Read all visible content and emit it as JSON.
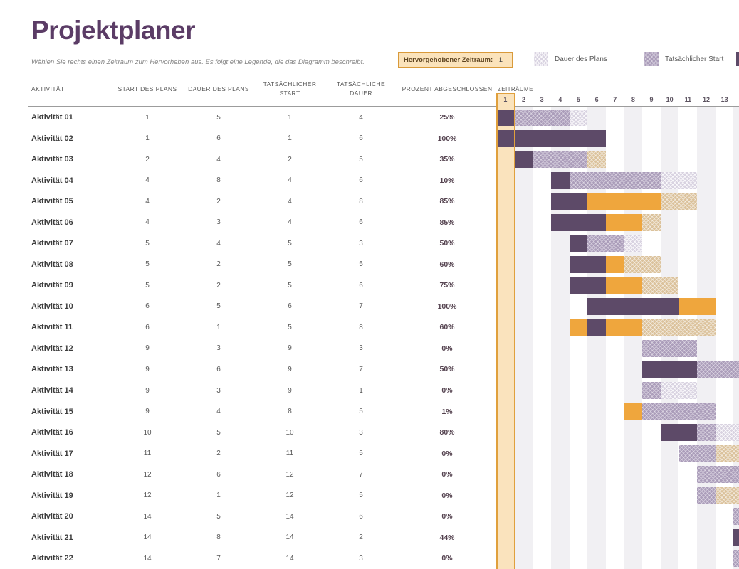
{
  "title": "Projektplaner",
  "subtitle": "Wählen Sie rechts einen Zeitraum zum Hervorheben aus.  Es folgt eine Legende, die das Diagramm beschreibt.",
  "highlight_control": {
    "label": "Hervorgehobener Zeitraum:",
    "value": 1
  },
  "legend": [
    {
      "label": "Dauer des Plans",
      "swatch": "plan-hatch"
    },
    {
      "label": "Tatsächlicher Start",
      "swatch": "actual-hatch"
    }
  ],
  "table": {
    "headers": [
      "AKTIVITÄT",
      "START DES PLANS",
      "DAUER DES PLANS",
      "TATSÄCHLICHER START",
      "TATSÄCHLICHE DAUER",
      "PROZENT ABGESCHLOSSEN"
    ],
    "rows": [
      {
        "activity": "Aktivität 01",
        "values": [
          1,
          5,
          1,
          4
        ],
        "percent": "25%"
      },
      {
        "activity": "Aktivität 02",
        "values": [
          1,
          6,
          1,
          6
        ],
        "percent": "100%"
      },
      {
        "activity": "Aktivität 03",
        "values": [
          2,
          4,
          2,
          5
        ],
        "percent": "35%"
      },
      {
        "activity": "Aktivität 04",
        "values": [
          4,
          8,
          4,
          6
        ],
        "percent": "10%"
      },
      {
        "activity": "Aktivität 05",
        "values": [
          4,
          2,
          4,
          8
        ],
        "percent": "85%"
      },
      {
        "activity": "Aktivität 06",
        "values": [
          4,
          3,
          4,
          6
        ],
        "percent": "85%"
      },
      {
        "activity": "Aktivität 07",
        "values": [
          5,
          4,
          5,
          3
        ],
        "percent": "50%"
      },
      {
        "activity": "Aktivität 08",
        "values": [
          5,
          2,
          5,
          5
        ],
        "percent": "60%"
      },
      {
        "activity": "Aktivität 09",
        "values": [
          5,
          2,
          5,
          6
        ],
        "percent": "75%"
      },
      {
        "activity": "Aktivität 10",
        "values": [
          6,
          5,
          6,
          7
        ],
        "percent": "100%"
      },
      {
        "activity": "Aktivität 11",
        "values": [
          6,
          1,
          5,
          8
        ],
        "percent": "60%"
      },
      {
        "activity": "Aktivität 12",
        "values": [
          9,
          3,
          9,
          3
        ],
        "percent": "0%"
      },
      {
        "activity": "Aktivität 13",
        "values": [
          9,
          6,
          9,
          7
        ],
        "percent": "50%"
      },
      {
        "activity": "Aktivität 14",
        "values": [
          9,
          3,
          9,
          1
        ],
        "percent": "0%"
      },
      {
        "activity": "Aktivität 15",
        "values": [
          9,
          4,
          8,
          5
        ],
        "percent": "1%"
      },
      {
        "activity": "Aktivität 16",
        "values": [
          10,
          5,
          10,
          3
        ],
        "percent": "80%"
      },
      {
        "activity": "Aktivität 17",
        "values": [
          11,
          2,
          11,
          5
        ],
        "percent": "0%"
      },
      {
        "activity": "Aktivität 18",
        "values": [
          12,
          6,
          12,
          7
        ],
        "percent": "0%"
      },
      {
        "activity": "Aktivität 19",
        "values": [
          12,
          1,
          12,
          5
        ],
        "percent": "0%"
      },
      {
        "activity": "Aktivität 20",
        "values": [
          14,
          5,
          14,
          6
        ],
        "percent": "0%"
      },
      {
        "activity": "Aktivität 21",
        "values": [
          14,
          8,
          14,
          2
        ],
        "percent": "44%"
      },
      {
        "activity": "Aktivität 22",
        "values": [
          14,
          7,
          14,
          3
        ],
        "percent": "0%"
      }
    ]
  },
  "gantt": {
    "axis_label": "ZEITRÄUME",
    "periods": [
      1,
      2,
      3,
      4,
      5,
      6,
      7,
      8,
      9,
      10,
      11,
      12,
      13
    ],
    "highlighted_period": 1,
    "bars": [
      [
        {
          "cols": [
            1,
            1
          ],
          "type": "percent-complete"
        },
        {
          "cols": [
            2,
            4
          ],
          "type": "actual-start"
        },
        {
          "cols": [
            5,
            5
          ],
          "type": "plan-duration"
        }
      ],
      [
        {
          "cols": [
            1,
            6
          ],
          "type": "percent-complete"
        }
      ],
      [
        {
          "cols": [
            2,
            2
          ],
          "type": "percent-complete"
        },
        {
          "cols": [
            3,
            5
          ],
          "type": "actual-start"
        },
        {
          "cols": [
            6,
            6
          ],
          "type": "actual-beyond-plan"
        }
      ],
      [
        {
          "cols": [
            4,
            4
          ],
          "type": "percent-complete"
        },
        {
          "cols": [
            5,
            9
          ],
          "type": "actual-start"
        },
        {
          "cols": [
            10,
            11
          ],
          "type": "plan-duration"
        }
      ],
      [
        {
          "cols": [
            4,
            5
          ],
          "type": "percent-complete"
        },
        {
          "cols": [
            6,
            9
          ],
          "type": "complete-beyond-plan"
        },
        {
          "cols": [
            10,
            11
          ],
          "type": "actual-beyond-plan"
        }
      ],
      [
        {
          "cols": [
            4,
            6
          ],
          "type": "percent-complete"
        },
        {
          "cols": [
            7,
            8
          ],
          "type": "complete-beyond-plan"
        },
        {
          "cols": [
            9,
            9
          ],
          "type": "actual-beyond-plan"
        }
      ],
      [
        {
          "cols": [
            5,
            5
          ],
          "type": "percent-complete"
        },
        {
          "cols": [
            6,
            7
          ],
          "type": "actual-start"
        },
        {
          "cols": [
            8,
            8
          ],
          "type": "plan-duration"
        }
      ],
      [
        {
          "cols": [
            5,
            6
          ],
          "type": "percent-complete"
        },
        {
          "cols": [
            7,
            7
          ],
          "type": "complete-beyond-plan"
        },
        {
          "cols": [
            8,
            9
          ],
          "type": "actual-beyond-plan"
        }
      ],
      [
        {
          "cols": [
            5,
            6
          ],
          "type": "percent-complete"
        },
        {
          "cols": [
            7,
            8
          ],
          "type": "complete-beyond-plan"
        },
        {
          "cols": [
            9,
            10
          ],
          "type": "actual-beyond-plan"
        }
      ],
      [
        {
          "cols": [
            6,
            10
          ],
          "type": "percent-complete"
        },
        {
          "cols": [
            11,
            12
          ],
          "type": "complete-beyond-plan"
        }
      ],
      [
        {
          "cols": [
            5,
            5
          ],
          "type": "complete-beyond-plan"
        },
        {
          "cols": [
            6,
            6
          ],
          "type": "percent-complete"
        },
        {
          "cols": [
            7,
            8
          ],
          "type": "complete-beyond-plan"
        },
        {
          "cols": [
            9,
            12
          ],
          "type": "actual-beyond-plan"
        }
      ],
      [
        {
          "cols": [
            9,
            11
          ],
          "type": "actual-start"
        }
      ],
      [
        {
          "cols": [
            9,
            11
          ],
          "type": "percent-complete"
        },
        {
          "cols": [
            12,
            15
          ],
          "type": "actual-start"
        }
      ],
      [
        {
          "cols": [
            9,
            9
          ],
          "type": "actual-start"
        },
        {
          "cols": [
            10,
            11
          ],
          "type": "plan-duration"
        }
      ],
      [
        {
          "cols": [
            8,
            8
          ],
          "type": "complete-beyond-plan"
        },
        {
          "cols": [
            9,
            12
          ],
          "type": "actual-start"
        }
      ],
      [
        {
          "cols": [
            10,
            11
          ],
          "type": "percent-complete"
        },
        {
          "cols": [
            12,
            12
          ],
          "type": "actual-start"
        },
        {
          "cols": [
            13,
            14
          ],
          "type": "plan-duration"
        }
      ],
      [
        {
          "cols": [
            11,
            12
          ],
          "type": "actual-start"
        },
        {
          "cols": [
            13,
            15
          ],
          "type": "actual-beyond-plan"
        }
      ],
      [
        {
          "cols": [
            12,
            18
          ],
          "type": "actual-start"
        }
      ],
      [
        {
          "cols": [
            12,
            12
          ],
          "type": "actual-start"
        },
        {
          "cols": [
            13,
            16
          ],
          "type": "actual-beyond-plan"
        }
      ],
      [
        {
          "cols": [
            14,
            19
          ],
          "type": "actual-start"
        }
      ],
      [
        {
          "cols": [
            14,
            14
          ],
          "type": "percent-complete"
        },
        {
          "cols": [
            15,
            15
          ],
          "type": "actual-start"
        }
      ],
      [
        {
          "cols": [
            14,
            16
          ],
          "type": "actual-start"
        }
      ]
    ]
  },
  "colors": {
    "title": "#5b3c66",
    "percent_complete": "#5d4a68",
    "complete_beyond_plan": "#efa63d",
    "actual_start": "#ab9dba",
    "plan_duration": "#d9d3e1",
    "actual_beyond_plan": "#dbc29c",
    "highlight_fill": "#fae3bd",
    "highlight_border": "#e0a03c",
    "stripe": "#f1f0f3"
  }
}
